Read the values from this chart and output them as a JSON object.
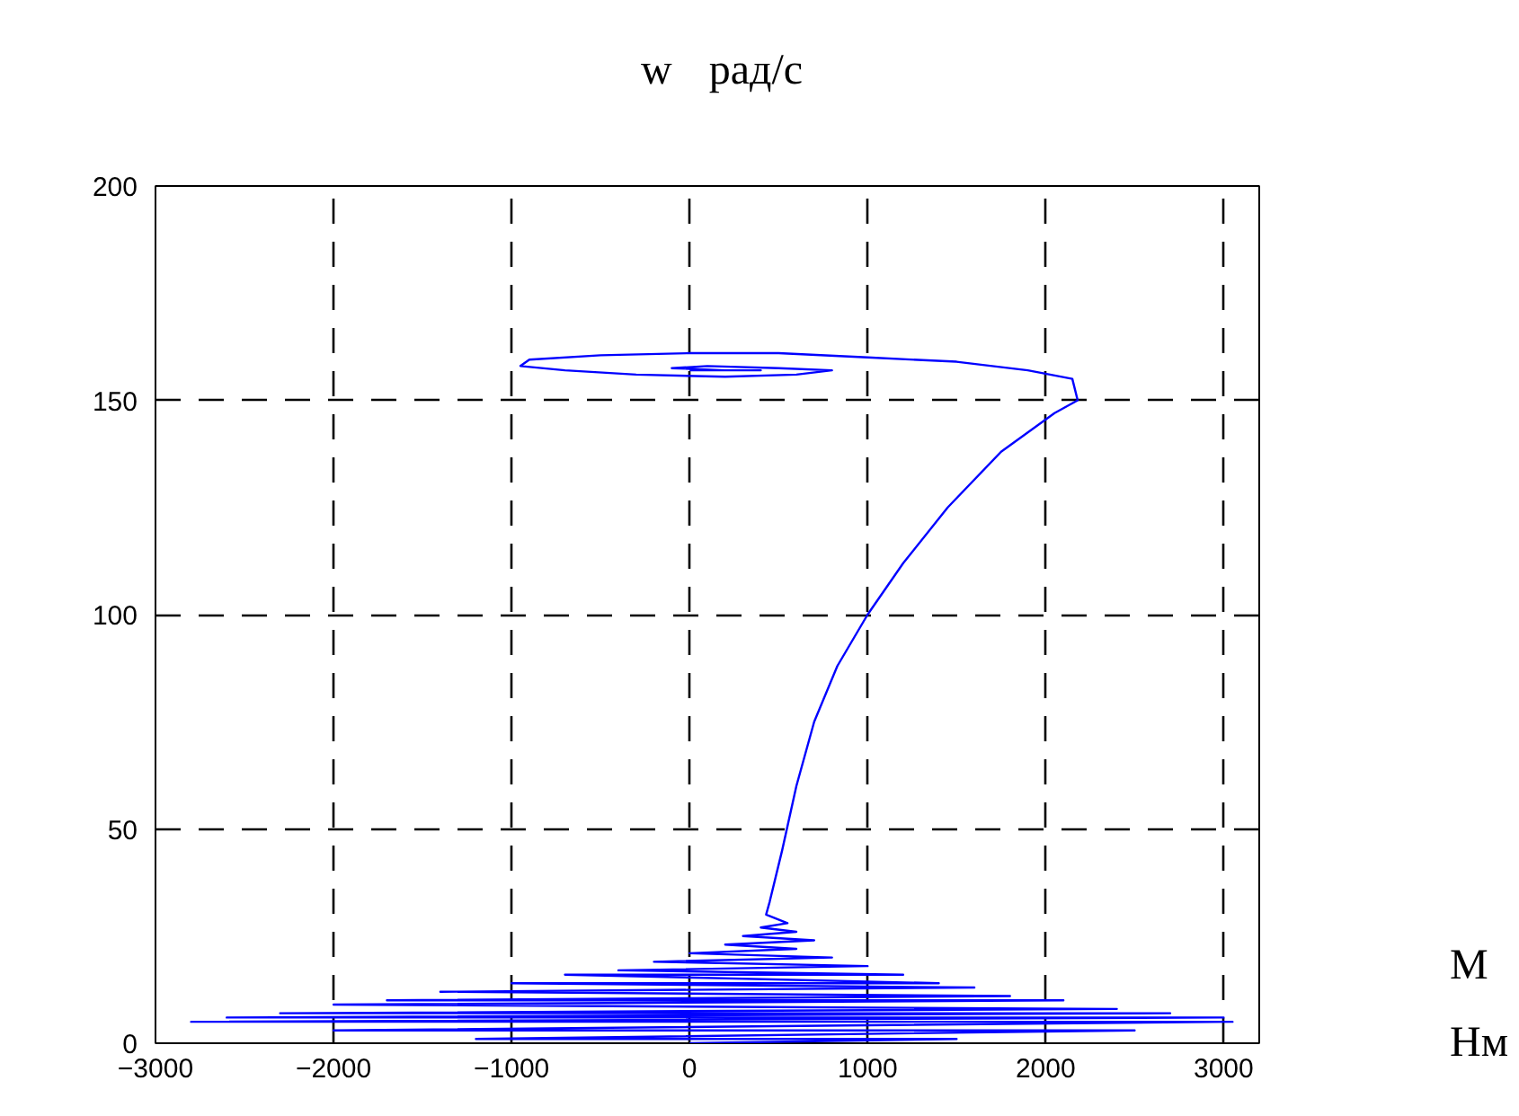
{
  "chart_data": {
    "type": "line",
    "ylabel": "w",
    "xlabel": "M",
    "annotations": [
      "рад/с",
      "Нм"
    ],
    "xlim": [
      -3000,
      3200
    ],
    "ylim": [
      0,
      200
    ],
    "xticks": [
      -3000,
      -2000,
      -1000,
      0,
      1000,
      2000,
      3000
    ],
    "yticks": [
      0,
      50,
      100,
      150,
      200
    ],
    "grid": true,
    "marker": "none",
    "line_style": "solid",
    "series": [
      {
        "color": "#0000ff",
        "x": [
          0,
          1500,
          -1200,
          2500,
          -2000,
          3050,
          -2800,
          3000,
          -2600,
          2700,
          -2300,
          2400,
          -2000,
          2100,
          -1700,
          1800,
          -1400,
          1600,
          -1000,
          1400,
          -700,
          1200,
          -400,
          1000,
          -200,
          800,
          0,
          600,
          200,
          700,
          300,
          600,
          400,
          550,
          430,
          450,
          520,
          600,
          700,
          830,
          1000,
          1200,
          1450,
          1750,
          2050,
          2180,
          2150,
          1900,
          1500,
          1000,
          500,
          0,
          -500,
          -900,
          -950,
          -700,
          -300,
          200,
          600,
          800,
          500,
          100,
          -100,
          200,
          400,
          100,
          0
        ],
        "values": [
          0,
          1,
          1,
          3,
          3,
          5,
          5,
          6,
          6,
          7,
          7,
          8,
          9,
          10,
          10,
          11,
          12,
          13,
          14,
          14,
          16,
          16,
          17,
          18,
          19,
          20,
          21,
          22,
          23,
          24,
          25,
          26,
          27,
          28,
          30,
          33,
          45,
          60,
          75,
          88,
          100,
          112,
          125,
          138,
          147,
          150,
          155,
          157,
          159,
          160,
          161,
          161,
          160.5,
          159.5,
          158,
          157,
          156,
          155.5,
          156,
          157,
          157.5,
          158,
          157.5,
          157,
          157,
          157,
          157
        ]
      }
    ]
  }
}
